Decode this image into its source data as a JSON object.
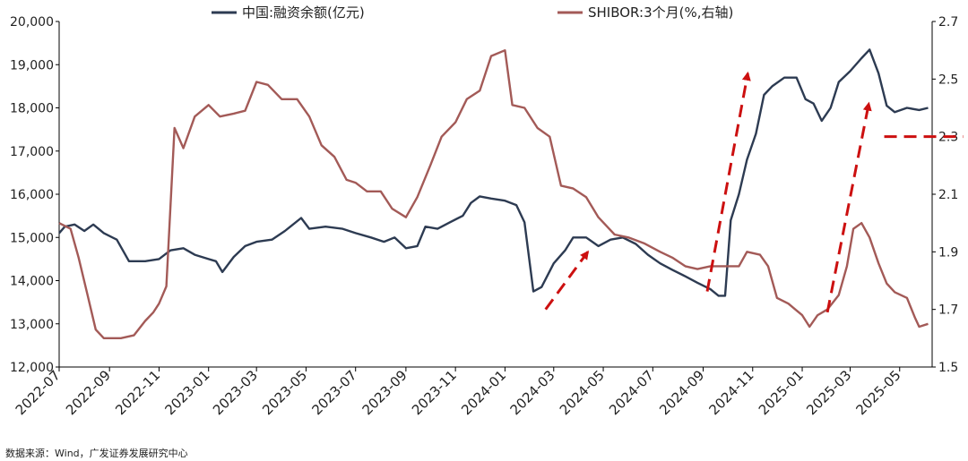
{
  "chart_data": {
    "type": "line",
    "legend": [
      {
        "name": "中国:融资余额(亿元)",
        "color": "#2d3b52"
      },
      {
        "name": "SHIBOR:3个月(%,右轴)",
        "color": "#a35a57"
      }
    ],
    "x_ticks": [
      "2022-07",
      "2022-09",
      "2022-11",
      "2023-01",
      "2023-03",
      "2023-05",
      "2023-07",
      "2023-09",
      "2023-11",
      "2024-01",
      "2024-03",
      "2024-05",
      "2024-07",
      "2024-09",
      "2024-11",
      "2025-01",
      "2025-03",
      "2025-05"
    ],
    "y_left": {
      "min": 12000,
      "max": 20000,
      "step": 1000,
      "ticks": [
        "12,000",
        "13,000",
        "14,000",
        "15,000",
        "16,000",
        "17,000",
        "18,000",
        "19,000",
        "20,000"
      ]
    },
    "y_right": {
      "min": 1.5,
      "max": 2.7,
      "step": 0.2,
      "ticks": [
        "1.5",
        "1.7",
        "1.9",
        "2.1",
        "2.3",
        "2.5",
        "2.7"
      ]
    },
    "series": [
      {
        "name": "中国:融资余额(亿元)",
        "axis": "left",
        "color": "#2d3b52",
        "points": [
          [
            "2022-07-01",
            15100
          ],
          [
            "2022-07-08",
            15250
          ],
          [
            "2022-07-20",
            15300
          ],
          [
            "2022-08-01",
            15150
          ],
          [
            "2022-08-12",
            15300
          ],
          [
            "2022-08-25",
            15100
          ],
          [
            "2022-09-10",
            14950
          ],
          [
            "2022-09-25",
            14450
          ],
          [
            "2022-10-15",
            14450
          ],
          [
            "2022-11-01",
            14500
          ],
          [
            "2022-11-15",
            14700
          ],
          [
            "2022-12-01",
            14750
          ],
          [
            "2022-12-15",
            14600
          ],
          [
            "2023-01-01",
            14500
          ],
          [
            "2023-01-10",
            14450
          ],
          [
            "2023-01-18",
            14200
          ],
          [
            "2023-02-01",
            14550
          ],
          [
            "2023-02-15",
            14800
          ],
          [
            "2023-03-01",
            14900
          ],
          [
            "2023-03-20",
            14950
          ],
          [
            "2023-04-05",
            15150
          ],
          [
            "2023-04-25",
            15450
          ],
          [
            "2023-05-05",
            15200
          ],
          [
            "2023-05-25",
            15250
          ],
          [
            "2023-06-15",
            15200
          ],
          [
            "2023-07-01",
            15100
          ],
          [
            "2023-07-20",
            15000
          ],
          [
            "2023-08-05",
            14900
          ],
          [
            "2023-08-18",
            15000
          ],
          [
            "2023-09-01",
            14750
          ],
          [
            "2023-09-15",
            14800
          ],
          [
            "2023-09-25",
            15250
          ],
          [
            "2023-10-10",
            15200
          ],
          [
            "2023-10-25",
            15350
          ],
          [
            "2023-11-10",
            15500
          ],
          [
            "2023-11-20",
            15800
          ],
          [
            "2023-12-01",
            15950
          ],
          [
            "2023-12-15",
            15900
          ],
          [
            "2024-01-01",
            15850
          ],
          [
            "2024-01-15",
            15750
          ],
          [
            "2024-01-25",
            15350
          ],
          [
            "2024-02-05",
            13750
          ],
          [
            "2024-02-15",
            13850
          ],
          [
            "2024-03-01",
            14400
          ],
          [
            "2024-03-15",
            14700
          ],
          [
            "2024-03-25",
            15000
          ],
          [
            "2024-04-10",
            15000
          ],
          [
            "2024-04-25",
            14800
          ],
          [
            "2024-05-10",
            14950
          ],
          [
            "2024-05-25",
            15000
          ],
          [
            "2024-06-10",
            14850
          ],
          [
            "2024-06-25",
            14600
          ],
          [
            "2024-07-10",
            14400
          ],
          [
            "2024-07-25",
            14250
          ],
          [
            "2024-08-10",
            14100
          ],
          [
            "2024-08-25",
            13950
          ],
          [
            "2024-09-10",
            13800
          ],
          [
            "2024-09-20",
            13650
          ],
          [
            "2024-09-28",
            13650
          ],
          [
            "2024-10-05",
            15400
          ],
          [
            "2024-10-15",
            16000
          ],
          [
            "2024-10-25",
            16800
          ],
          [
            "2024-11-05",
            17400
          ],
          [
            "2024-11-15",
            18300
          ],
          [
            "2024-11-25",
            18500
          ],
          [
            "2024-12-10",
            18700
          ],
          [
            "2024-12-25",
            18700
          ],
          [
            "2025-01-05",
            18200
          ],
          [
            "2025-01-15",
            18100
          ],
          [
            "2025-01-25",
            17700
          ],
          [
            "2025-02-05",
            18000
          ],
          [
            "2025-02-15",
            18600
          ],
          [
            "2025-03-01",
            18850
          ],
          [
            "2025-03-15",
            19150
          ],
          [
            "2025-03-25",
            19350
          ],
          [
            "2025-04-05",
            18800
          ],
          [
            "2025-04-15",
            18050
          ],
          [
            "2025-04-25",
            17900
          ],
          [
            "2025-05-10",
            18000
          ],
          [
            "2025-05-25",
            17950
          ],
          [
            "2025-06-05",
            18000
          ]
        ]
      },
      {
        "name": "SHIBOR:3个月(%,右轴)",
        "axis": "right",
        "color": "#a35a57",
        "points": [
          [
            "2022-07-01",
            2.0
          ],
          [
            "2022-07-15",
            1.98
          ],
          [
            "2022-07-25",
            1.88
          ],
          [
            "2022-08-05",
            1.75
          ],
          [
            "2022-08-15",
            1.63
          ],
          [
            "2022-08-25",
            1.6
          ],
          [
            "2022-09-15",
            1.6
          ],
          [
            "2022-10-01",
            1.61
          ],
          [
            "2022-10-15",
            1.66
          ],
          [
            "2022-10-25",
            1.69
          ],
          [
            "2022-11-01",
            1.72
          ],
          [
            "2022-11-10",
            1.78
          ],
          [
            "2022-11-20",
            2.33
          ],
          [
            "2022-12-01",
            2.26
          ],
          [
            "2022-12-15",
            2.37
          ],
          [
            "2023-01-01",
            2.41
          ],
          [
            "2023-01-15",
            2.37
          ],
          [
            "2023-02-01",
            2.38
          ],
          [
            "2023-02-15",
            2.39
          ],
          [
            "2023-03-01",
            2.49
          ],
          [
            "2023-03-15",
            2.48
          ],
          [
            "2023-04-01",
            2.43
          ],
          [
            "2023-04-20",
            2.43
          ],
          [
            "2023-05-05",
            2.37
          ],
          [
            "2023-05-20",
            2.27
          ],
          [
            "2023-06-05",
            2.23
          ],
          [
            "2023-06-20",
            2.15
          ],
          [
            "2023-07-01",
            2.14
          ],
          [
            "2023-07-15",
            2.11
          ],
          [
            "2023-08-01",
            2.11
          ],
          [
            "2023-08-15",
            2.05
          ],
          [
            "2023-09-01",
            2.02
          ],
          [
            "2023-09-15",
            2.09
          ],
          [
            "2023-10-01",
            2.2
          ],
          [
            "2023-10-15",
            2.3
          ],
          [
            "2023-11-01",
            2.35
          ],
          [
            "2023-11-15",
            2.43
          ],
          [
            "2023-12-01",
            2.46
          ],
          [
            "2023-12-15",
            2.58
          ],
          [
            "2024-01-01",
            2.6
          ],
          [
            "2024-01-10",
            2.41
          ],
          [
            "2024-01-25",
            2.4
          ],
          [
            "2024-02-10",
            2.33
          ],
          [
            "2024-02-25",
            2.3
          ],
          [
            "2024-03-10",
            2.13
          ],
          [
            "2024-03-25",
            2.12
          ],
          [
            "2024-04-10",
            2.09
          ],
          [
            "2024-04-25",
            2.02
          ],
          [
            "2024-05-15",
            1.96
          ],
          [
            "2024-06-01",
            1.95
          ],
          [
            "2024-06-20",
            1.93
          ],
          [
            "2024-07-10",
            1.9
          ],
          [
            "2024-07-25",
            1.88
          ],
          [
            "2024-08-10",
            1.85
          ],
          [
            "2024-08-25",
            1.84
          ],
          [
            "2024-09-10",
            1.85
          ],
          [
            "2024-09-25",
            1.85
          ],
          [
            "2024-10-15",
            1.85
          ],
          [
            "2024-10-25",
            1.9
          ],
          [
            "2024-11-10",
            1.89
          ],
          [
            "2024-11-20",
            1.85
          ],
          [
            "2024-12-01",
            1.74
          ],
          [
            "2024-12-15",
            1.72
          ],
          [
            "2025-01-01",
            1.68
          ],
          [
            "2025-01-10",
            1.64
          ],
          [
            "2025-01-20",
            1.68
          ],
          [
            "2025-02-01",
            1.7
          ],
          [
            "2025-02-15",
            1.75
          ],
          [
            "2025-02-25",
            1.85
          ],
          [
            "2025-03-05",
            1.98
          ],
          [
            "2025-03-15",
            2.0
          ],
          [
            "2025-03-25",
            1.95
          ],
          [
            "2025-04-05",
            1.86
          ],
          [
            "2025-04-15",
            1.79
          ],
          [
            "2025-04-25",
            1.76
          ],
          [
            "2025-05-10",
            1.74
          ],
          [
            "2025-05-20",
            1.67
          ],
          [
            "2025-05-25",
            1.64
          ],
          [
            "2025-06-05",
            1.65
          ]
        ]
      }
    ],
    "annotations": [
      {
        "type": "arrow",
        "color": "#cc1010",
        "from": [
          "2024-02-20",
          1.7
        ],
        "to": [
          "2024-04-12",
          1.9
        ],
        "axis": "right"
      },
      {
        "type": "arrow",
        "color": "#cc1010",
        "from": [
          "2024-09-06",
          13750
        ],
        "to": [
          "2024-10-26",
          18800
        ],
        "axis": "left"
      },
      {
        "type": "arrow",
        "color": "#cc1010",
        "from": [
          "2025-02-01",
          1.69
        ],
        "to": [
          "2025-03-24",
          1.98
        ],
        "axis": "left-scaled"
      },
      {
        "type": "hline",
        "color": "#cc1010",
        "from": "2025-04-12",
        "to": "2025-06-20",
        "y": 2.3,
        "axis": "right"
      }
    ],
    "grid": false,
    "legend_position": "top"
  },
  "source": "数据来源：Wind，广发证券发展研究中心"
}
